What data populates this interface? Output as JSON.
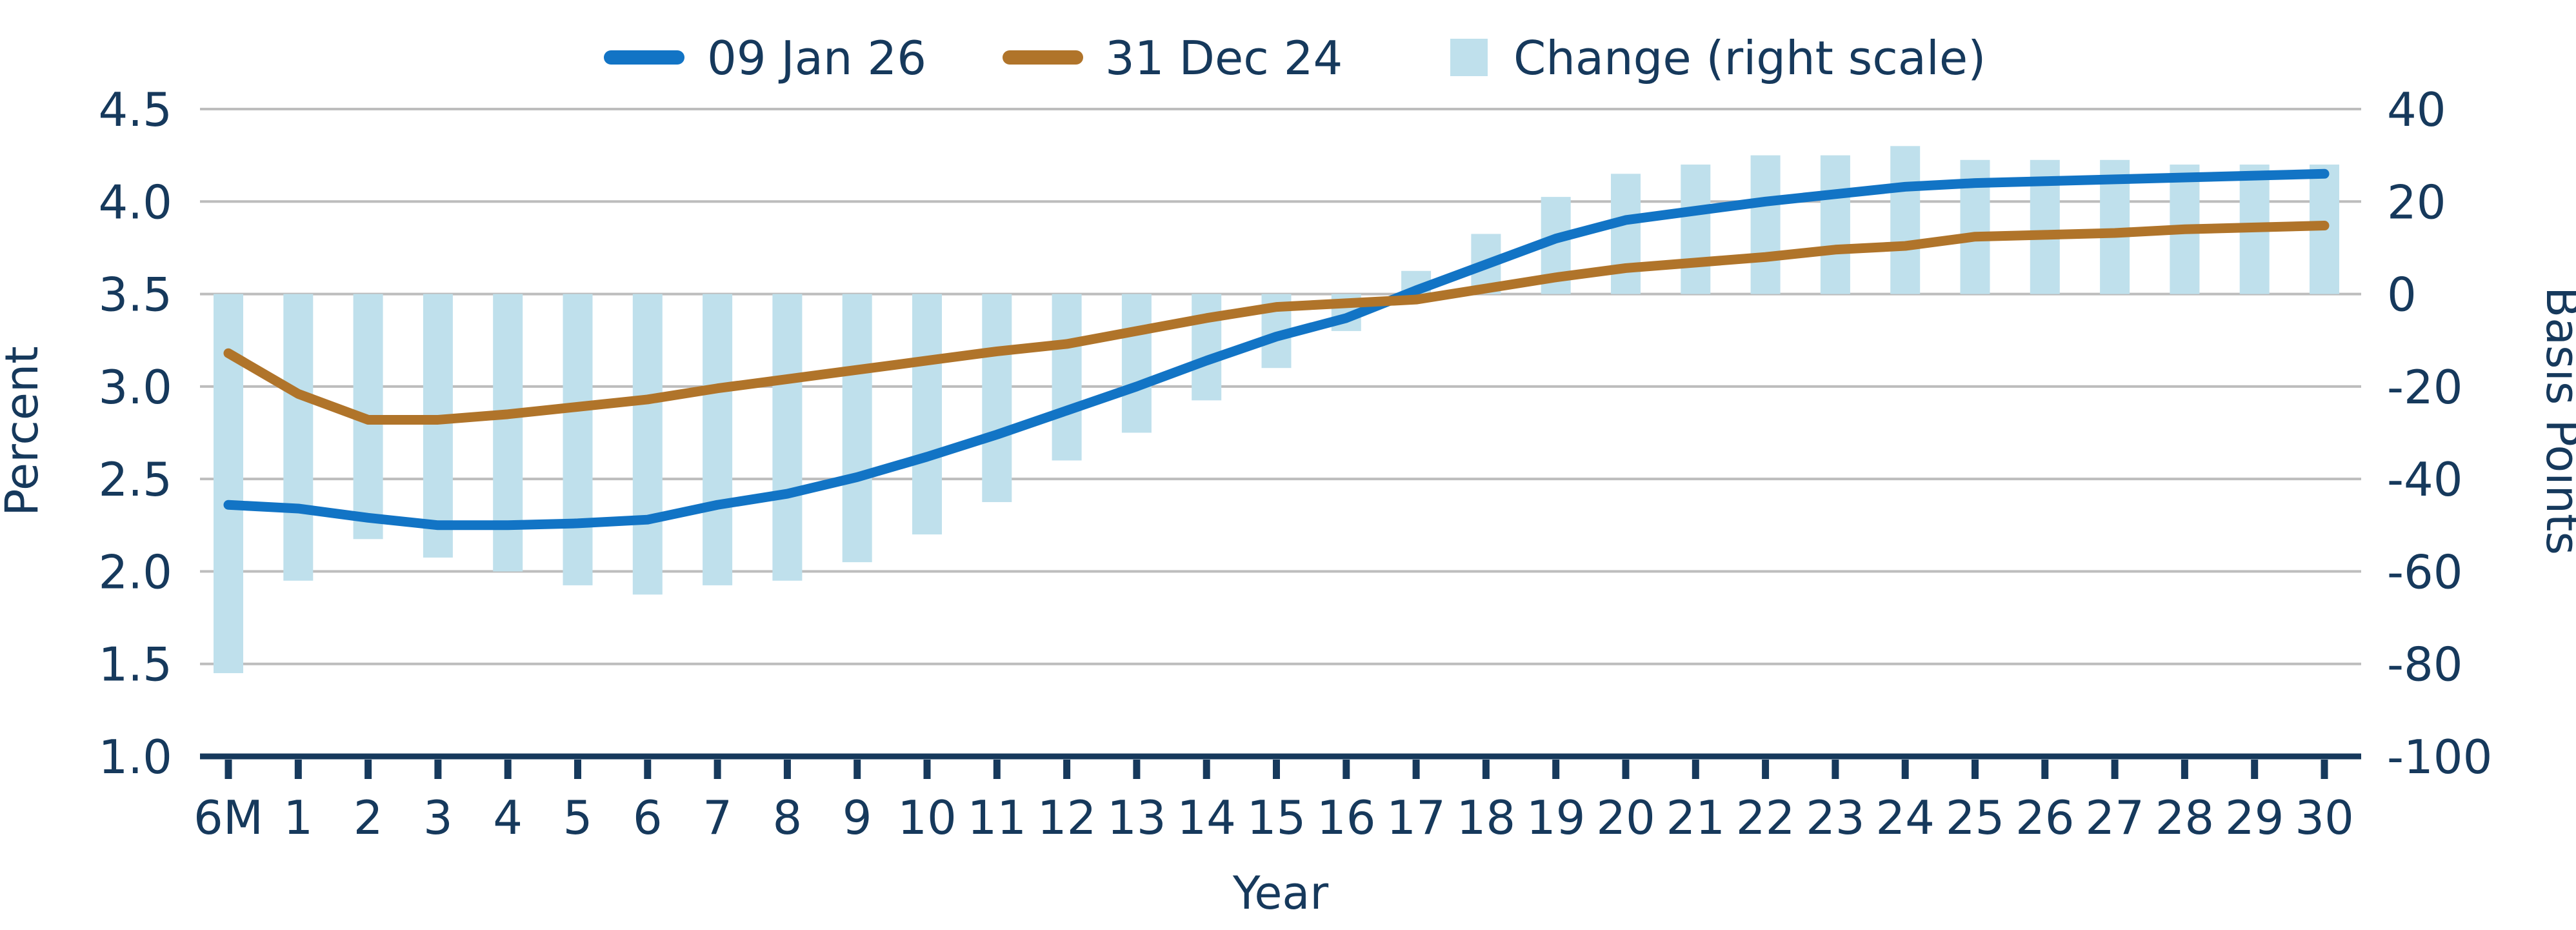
{
  "legend": {
    "series1_label": "09 Jan 26",
    "series2_label": "31 Dec 24",
    "bars_label": "Change (right scale)"
  },
  "axes": {
    "left_title": "Percent",
    "right_title": "Basis Points",
    "x_title": "Year",
    "left_ticks": [
      "4.5",
      "4.0",
      "3.5",
      "3.0",
      "2.5",
      "2.0",
      "1.5",
      "1.0"
    ],
    "right_ticks": [
      "40",
      "20",
      "0",
      "-20",
      "-40",
      "-60",
      "-80",
      "-100"
    ],
    "x_ticks": [
      "6M",
      "1",
      "2",
      "3",
      "4",
      "5",
      "6",
      "7",
      "8",
      "9",
      "10",
      "11",
      "12",
      "13",
      "14",
      "15",
      "16",
      "17",
      "18",
      "19",
      "20",
      "21",
      "22",
      "23",
      "24",
      "25",
      "26",
      "27",
      "28",
      "29",
      "30"
    ]
  },
  "colors": {
    "series1": "#1274C5",
    "series2": "#B0742A",
    "bars": "#BFE0EC",
    "text": "#16395C",
    "grid": "#BDBDBD",
    "axis_line": "#16395C"
  },
  "chart_data": {
    "type": "combo",
    "categories": [
      "6M",
      "1",
      "2",
      "3",
      "4",
      "5",
      "6",
      "7",
      "8",
      "9",
      "10",
      "11",
      "12",
      "13",
      "14",
      "15",
      "16",
      "17",
      "18",
      "19",
      "20",
      "21",
      "22",
      "23",
      "24",
      "25",
      "26",
      "27",
      "28",
      "29",
      "30"
    ],
    "series": [
      {
        "name": "09 Jan 26",
        "type": "line",
        "axis": "left",
        "color": "#1274C5",
        "values": [
          2.36,
          2.34,
          2.29,
          2.25,
          2.25,
          2.26,
          2.28,
          2.36,
          2.42,
          2.51,
          2.62,
          2.74,
          2.87,
          3.0,
          3.14,
          3.27,
          3.37,
          3.52,
          3.66,
          3.8,
          3.9,
          3.95,
          4.0,
          4.04,
          4.08,
          4.1,
          4.11,
          4.12,
          4.13,
          4.14,
          4.15
        ]
      },
      {
        "name": "31 Dec 24",
        "type": "line",
        "axis": "left",
        "color": "#B0742A",
        "values": [
          3.18,
          2.96,
          2.82,
          2.82,
          2.85,
          2.89,
          2.93,
          2.99,
          3.04,
          3.09,
          3.14,
          3.19,
          3.23,
          3.3,
          3.37,
          3.43,
          3.45,
          3.47,
          3.53,
          3.59,
          3.64,
          3.67,
          3.7,
          3.74,
          3.76,
          3.81,
          3.82,
          3.83,
          3.85,
          3.86,
          3.87
        ]
      },
      {
        "name": "Change (right scale)",
        "type": "bar",
        "axis": "right",
        "color": "#BFE0EC",
        "values": [
          -82,
          -62,
          -53,
          -57,
          -60,
          -63,
          -65,
          -63,
          -62,
          -58,
          -52,
          -45,
          -36,
          -30,
          -23,
          -16,
          -8,
          5,
          13,
          21,
          26,
          28,
          30,
          30,
          32,
          29,
          29,
          29,
          28,
          28,
          28
        ]
      }
    ],
    "left_axis": {
      "label": "Percent",
      "min": 1.0,
      "max": 4.5,
      "tick_step": 0.5
    },
    "right_axis": {
      "label": "Basis Points",
      "min": -100,
      "max": 40,
      "tick_step": 20
    },
    "xlabel": "Year",
    "grid": true,
    "legend_position": "top"
  }
}
